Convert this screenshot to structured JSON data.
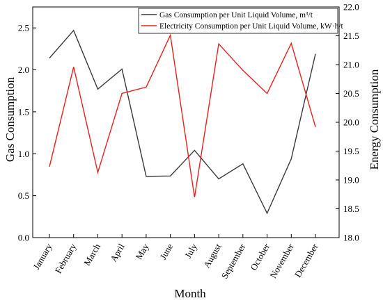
{
  "chart_data": {
    "type": "line",
    "categories": [
      "January",
      "February",
      "March",
      "April",
      "May",
      "June",
      "July",
      "August",
      "September",
      "October",
      "November",
      "December"
    ],
    "series": [
      {
        "name": "Gas Consumption per Unit Liquid Volume, m³/t",
        "axis": "left",
        "color": "#3a3a3a",
        "values": [
          2.14,
          2.47,
          1.77,
          2.01,
          0.73,
          0.735,
          1.04,
          0.7,
          0.88,
          0.29,
          0.94,
          2.19
        ]
      },
      {
        "name": "Electricity Consumption per Unit Liquid Volume, kW·h/t",
        "axis": "right",
        "color": "#e8201f",
        "values": [
          19.23,
          20.96,
          19.13,
          20.5,
          20.61,
          21.51,
          18.7,
          21.36,
          20.9,
          20.5,
          21.37,
          19.92
        ]
      }
    ],
    "xlabel": "Month",
    "ylabel_left": "Gas Consumption",
    "ylabel_right": "Energy Consumption",
    "ylim_left": [
      0.0,
      2.75
    ],
    "ylim_right": [
      18.0,
      22.0
    ],
    "yticks_left": [
      "0.0",
      "0.5",
      "1.0",
      "1.5",
      "2.0",
      "2.5"
    ],
    "yticks_right": [
      "18.0",
      "18.5",
      "19.0",
      "19.5",
      "20.0",
      "20.5",
      "21.0",
      "21.5",
      "22.0"
    ],
    "grid": false,
    "legend_position": "top-right"
  }
}
